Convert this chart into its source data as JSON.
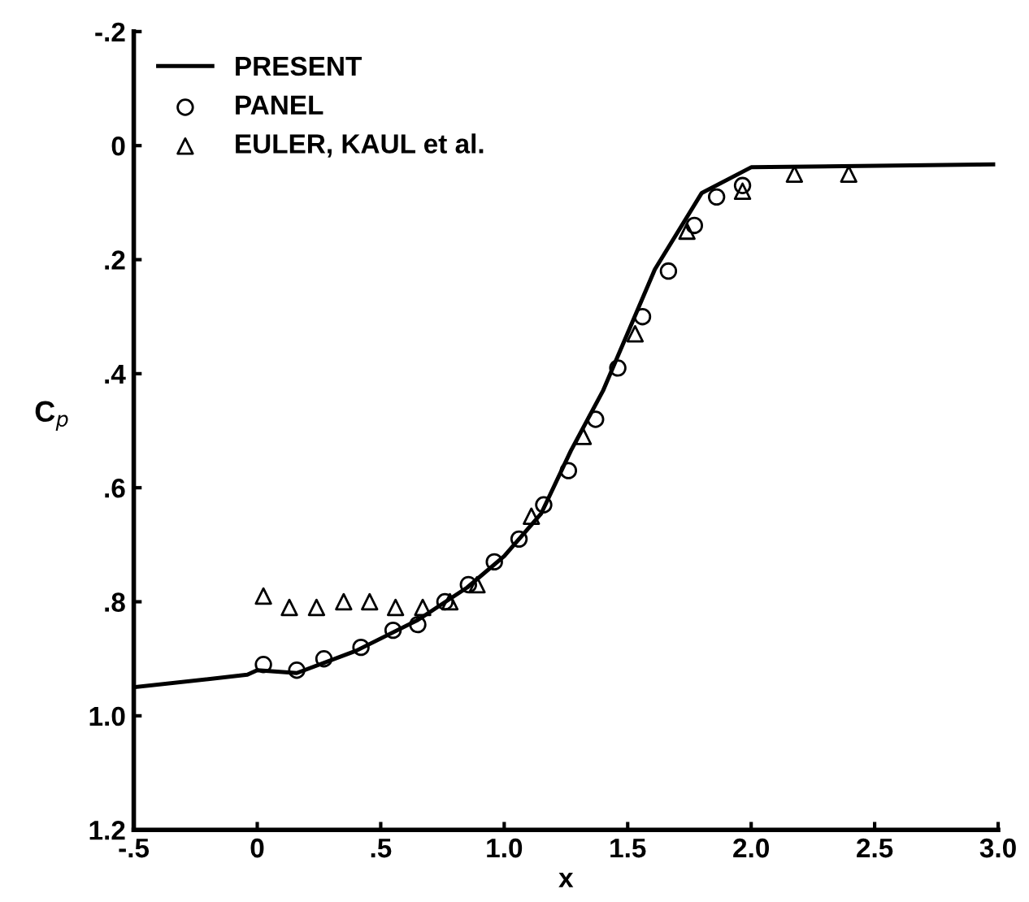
{
  "chart_data": {
    "type": "line",
    "xlabel": "x",
    "ylabel": "C$_{p}$",
    "xlim": [
      -0.5,
      3.0
    ],
    "xticks": [
      {
        "value": -0.5,
        "label": "-.5"
      },
      0,
      {
        "value": 0.5,
        "label": ".5"
      },
      {
        "value": 1.0,
        "label": "1.0"
      },
      {
        "value": 1.5,
        "label": "1.5"
      },
      {
        "value": 2.0,
        "label": "2.0"
      },
      {
        "value": 2.5,
        "label": "2.5"
      },
      {
        "value": 3.0,
        "label": "3.0"
      }
    ],
    "ylim": [
      1.2,
      -0.2
    ],
    "yticks": [
      {
        "value": -0.2,
        "label": "-.2"
      },
      0,
      {
        "value": 0.2,
        "label": ".2"
      },
      {
        "value": 0.4,
        "label": ".4"
      },
      {
        "value": 0.6,
        "label": ".6"
      },
      {
        "value": 0.8,
        "label": ".8"
      },
      {
        "value": 1.0,
        "label": "1.0"
      },
      {
        "value": 1.2,
        "label": "1.2"
      }
    ],
    "grid": false,
    "legend": "top left",
    "series": [
      {
        "name": "PRESENT",
        "color": "#000000",
        "marker": "none",
        "line_style": "solid",
        "x": [
          -0.5,
          -0.04,
          0.0,
          0.16,
          0.4,
          0.65,
          0.85,
          1.0,
          1.15,
          1.27,
          1.4,
          1.61,
          1.8,
          2.0,
          2.98
        ],
        "values": [
          0.95,
          0.928,
          0.92,
          0.925,
          0.886,
          0.832,
          0.775,
          0.72,
          0.645,
          0.535,
          0.43,
          0.217,
          0.083,
          0.038,
          0.033
        ]
      },
      {
        "name": "PANEL",
        "type": "scatter",
        "color": "#000000",
        "marker": "circle",
        "x": [
          0.025,
          0.16,
          0.27,
          0.42,
          0.55,
          0.65,
          0.76,
          0.855,
          0.96,
          1.06,
          1.16,
          1.26,
          1.37,
          1.46,
          1.56,
          1.665,
          1.77,
          1.86,
          1.965
        ],
        "values": [
          0.91,
          0.92,
          0.9,
          0.88,
          0.85,
          0.84,
          0.8,
          0.77,
          0.73,
          0.69,
          0.63,
          0.57,
          0.48,
          0.39,
          0.3,
          0.22,
          0.14,
          0.09,
          0.07
        ]
      },
      {
        "name": "EULER, KAUL et al.",
        "type": "scatter",
        "color": "#000000",
        "marker": "triangle",
        "x": [
          0.025,
          0.13,
          0.24,
          0.35,
          0.455,
          0.56,
          0.67,
          0.78,
          0.89,
          1.11,
          1.32,
          1.53,
          1.74,
          1.965,
          2.175,
          2.395
        ],
        "values": [
          0.79,
          0.81,
          0.81,
          0.8,
          0.8,
          0.81,
          0.81,
          0.8,
          0.77,
          0.65,
          0.51,
          0.33,
          0.15,
          0.08,
          0.05,
          0.05
        ]
      }
    ]
  }
}
